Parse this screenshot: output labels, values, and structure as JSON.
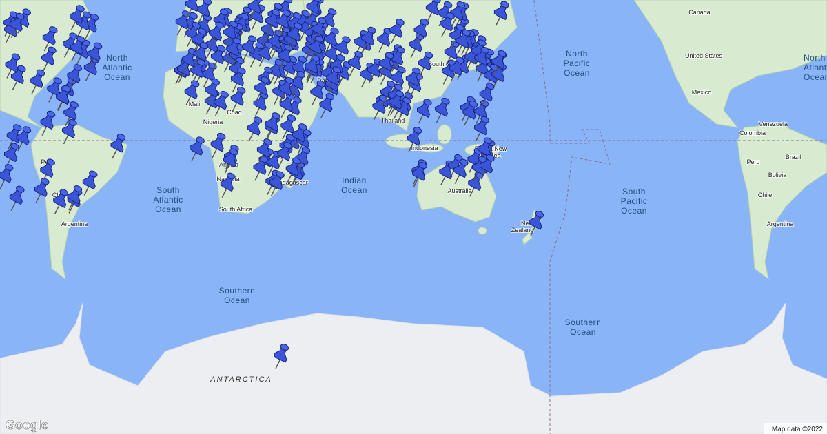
{
  "map": {
    "ocean_labels": [
      [
        "North",
        "Atlantic",
        "Ocean"
      ],
      [
        "North",
        "Pacific",
        "Ocean"
      ],
      [
        "North",
        "Atlantic",
        "Ocean"
      ],
      [
        "South",
        "Atlantic",
        "Ocean"
      ],
      [
        "Indian",
        "Ocean"
      ],
      [
        "South",
        "Pacific",
        "Ocean"
      ],
      [
        "Southern",
        "Ocean"
      ],
      [
        "Southern",
        "Ocean"
      ]
    ],
    "place_labels": [
      "Canada",
      "United States",
      "Mexico",
      "Venezuela",
      "Colombia",
      "Peru",
      "Brazil",
      "Bolivia",
      "Chile",
      "Argentina",
      "Peru",
      "Chile",
      "Argentina",
      "Mali",
      "Nigeria",
      "Chad",
      "Angola",
      "Namibia",
      "South Africa",
      "Madagascar",
      "Indonesia",
      "Papua New",
      "Guinea",
      "Australia",
      "New",
      "Zealand",
      "Pakistan",
      "Thailand",
      "South Korea"
    ],
    "region_label": "ANTARCTICA",
    "logo": "Google",
    "attribution": "Map data ©2022"
  }
}
